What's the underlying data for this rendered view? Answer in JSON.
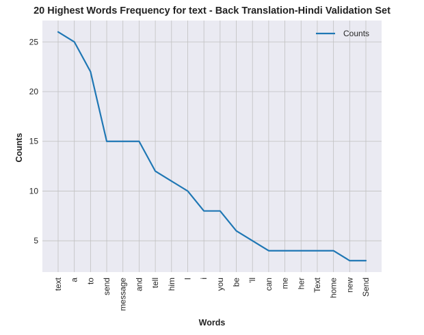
{
  "chart_data": {
    "type": "line",
    "title": "20 Highest Words Frequency for text - Back Translation-Hindi Validation Set",
    "xlabel": "Words",
    "ylabel": "Counts",
    "categories": [
      "text",
      "a",
      "to",
      "send",
      "message",
      "and",
      "tell",
      "him",
      "I",
      "i",
      "you",
      "be",
      "'ll",
      "can",
      "me",
      "her",
      "Text",
      "home",
      "new",
      "Send"
    ],
    "series": [
      {
        "name": "Counts",
        "values": [
          26,
          25,
          22,
          15,
          15,
          15,
          12,
          11,
          10,
          8,
          8,
          6,
          5,
          4,
          4,
          4,
          4,
          4,
          3,
          3
        ],
        "color": "#1f77b4"
      }
    ],
    "ylim": [
      1.85,
      27.15
    ],
    "yticks": [
      5,
      10,
      15,
      20,
      25
    ],
    "grid": true,
    "legend": "top-right",
    "background": "#eaeaf2",
    "gridColor": "#c0c0c0"
  }
}
